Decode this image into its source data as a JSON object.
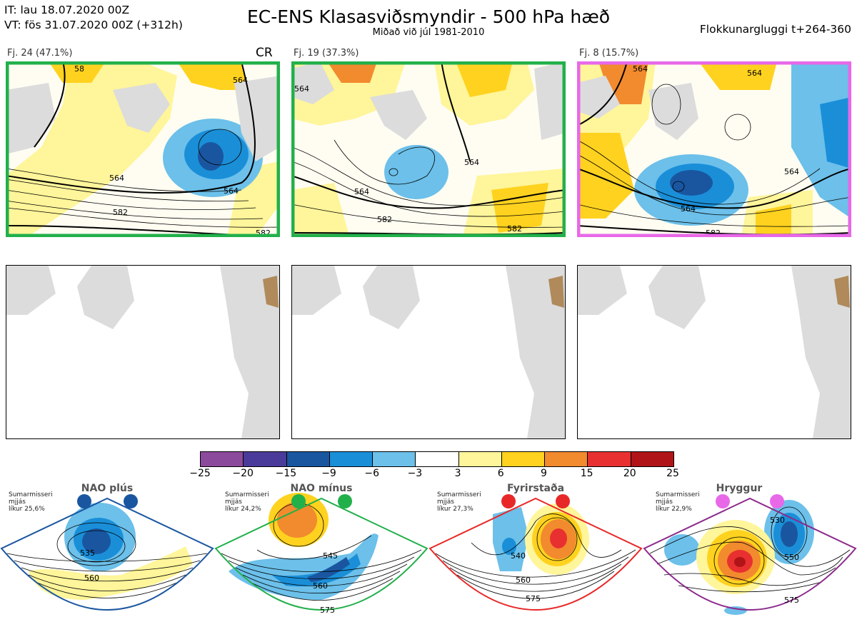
{
  "header": {
    "it_line": "IT: lau 18.07.2020 00Z",
    "vt_line": "VT: fös 31.07.2020 00Z  (+312h)",
    "title": "EC-ENS Klasasviðsmyndir - 500 hPa hæð",
    "subtitle": "Miðað við júl 1981-2010",
    "window": "Flokkunargluggi t+264-360"
  },
  "panels": [
    {
      "label": "Fj. 24 (47.1%)",
      "tag": "CR",
      "border": "#22b04b",
      "contour_labels": [
        "564",
        "564",
        "582",
        "58",
        "564",
        "582"
      ]
    },
    {
      "label": "Fj. 19 (37.3%)",
      "tag": "",
      "border": "#22b04b",
      "contour_labels": [
        "564",
        "564",
        "582",
        "582",
        "564"
      ]
    },
    {
      "label": "Fj. 8 (15.7%)",
      "tag": "",
      "border": "#e868e8",
      "contour_labels": [
        "564",
        "564",
        "564",
        "582",
        "564"
      ]
    }
  ],
  "colorbar": {
    "ticks": [
      "−25",
      "−20",
      "−15",
      "−9",
      "−6",
      "−3",
      "3",
      "6",
      "9",
      "15",
      "20",
      "25"
    ],
    "colors": [
      "#8c4a9c",
      "#4a3a9a",
      "#1a56a0",
      "#1a8fd8",
      "#6cc0ea",
      "#ffffff",
      "#fff59a",
      "#ffd21f",
      "#f28a2e",
      "#e83030",
      "#b01418"
    ]
  },
  "regimes": [
    {
      "name": "NAO plús",
      "note": [
        "Sumarmisseri",
        "mjjás",
        "líkur 25,6%"
      ],
      "color": "#1a56a0",
      "labels": [
        "535",
        "560"
      ]
    },
    {
      "name": "NAO mínus",
      "note": [
        "Sumarmisseri",
        "mjjás",
        "líkur 24,2%"
      ],
      "color": "#22b04b",
      "labels": [
        "545",
        "560",
        "575"
      ]
    },
    {
      "name": "Fyrirstaða",
      "note": [
        "Sumarmisseri",
        "mjjás",
        "líkur 27,3%"
      ],
      "color": "#e82828",
      "labels": [
        "540",
        "560",
        "575"
      ]
    },
    {
      "name": "Hryggur",
      "note": [
        "Sumarmisseri",
        "mjjás",
        "líkur 22,9%"
      ],
      "color": "#e868e8",
      "labels": [
        "530",
        "550",
        "575"
      ]
    }
  ]
}
